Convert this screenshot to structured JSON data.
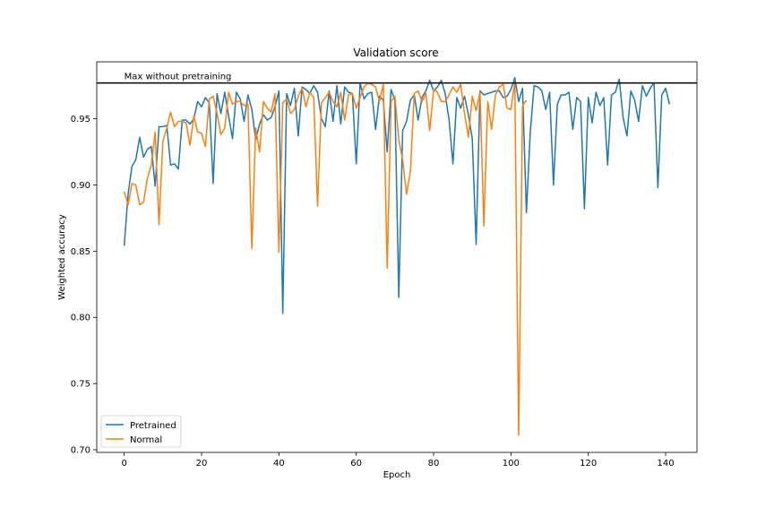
{
  "chart_data": {
    "type": "line",
    "title": "Validation score",
    "xlabel": "Epoch",
    "ylabel": "Weighted accuracy",
    "xlim": [
      -7.1,
      148.1
    ],
    "ylim": [
      0.698,
      0.993
    ],
    "xticks": [
      0,
      20,
      40,
      60,
      80,
      100,
      120,
      140
    ],
    "xtick_labels": [
      "0",
      "20",
      "40",
      "60",
      "80",
      "100",
      "120",
      "140"
    ],
    "yticks": [
      0.7,
      0.75,
      0.8,
      0.85,
      0.9,
      0.95
    ],
    "ytick_labels": [
      "0.70",
      "0.75",
      "0.80",
      "0.85",
      "0.90",
      "0.95"
    ],
    "grid": false,
    "legend_position": "lower-left",
    "reference_line": {
      "y": 0.977,
      "label": "Max without pretraining",
      "color": "#000000"
    },
    "series": [
      {
        "name": "Pretrained",
        "color": "#1f77b4",
        "values": [
          0.854,
          0.893,
          0.914,
          0.919,
          0.936,
          0.921,
          0.927,
          0.929,
          0.899,
          0.944,
          0.944,
          0.945,
          0.915,
          0.916,
          0.912,
          0.949,
          0.949,
          0.946,
          0.95,
          0.963,
          0.959,
          0.966,
          0.962,
          0.901,
          0.969,
          0.954,
          0.97,
          0.952,
          0.935,
          0.97,
          0.965,
          0.948,
          0.968,
          0.957,
          0.934,
          0.946,
          0.953,
          0.949,
          0.951,
          0.959,
          0.971,
          0.803,
          0.969,
          0.96,
          0.973,
          0.937,
          0.974,
          0.972,
          0.969,
          0.975,
          0.97,
          0.95,
          0.944,
          0.971,
          0.948,
          0.975,
          0.946,
          0.974,
          0.97,
          0.969,
          0.916,
          0.977,
          0.965,
          0.969,
          0.97,
          0.942,
          0.967,
          0.964,
          0.925,
          0.972,
          0.964,
          0.815,
          0.941,
          0.948,
          0.964,
          0.968,
          0.949,
          0.966,
          0.971,
          0.979,
          0.971,
          0.974,
          0.979,
          0.969,
          0.949,
          0.916,
          0.966,
          0.958,
          0.967,
          0.953,
          0.935,
          0.855,
          0.971,
          0.968,
          0.969,
          0.97,
          0.971,
          0.971,
          0.966,
          0.967,
          0.972,
          0.981,
          0.963,
          0.973,
          0.879,
          0.94,
          0.975,
          0.974,
          0.971,
          0.957,
          0.97,
          0.9,
          0.961,
          0.968,
          0.968,
          0.97,
          0.942,
          0.966,
          0.963,
          0.882,
          0.966,
          0.947,
          0.97,
          0.96,
          0.966,
          0.915,
          0.968,
          0.97,
          0.98,
          0.951,
          0.937,
          0.971,
          0.964,
          0.948,
          0.975,
          0.967,
          0.973,
          0.977,
          0.898,
          0.968,
          0.973,
          0.961
        ]
      },
      {
        "name": "Normal",
        "color": "#ff7f0e",
        "values": [
          0.895,
          0.885,
          0.901,
          0.9,
          0.885,
          0.887,
          0.905,
          0.915,
          0.94,
          0.87,
          0.933,
          0.943,
          0.955,
          0.944,
          0.948,
          0.948,
          0.947,
          0.93,
          0.952,
          0.94,
          0.939,
          0.929,
          0.965,
          0.967,
          0.954,
          0.938,
          0.943,
          0.97,
          0.961,
          0.963,
          0.963,
          0.96,
          0.961,
          0.852,
          0.943,
          0.925,
          0.963,
          0.958,
          0.955,
          0.969,
          0.849,
          0.962,
          0.965,
          0.954,
          0.957,
          0.967,
          0.973,
          0.959,
          0.97,
          0.966,
          0.884,
          0.962,
          0.966,
          0.97,
          0.963,
          0.959,
          0.97,
          0.949,
          0.968,
          0.969,
          0.958,
          0.966,
          0.974,
          0.977,
          0.976,
          0.974,
          0.963,
          0.976,
          0.837,
          0.963,
          0.967,
          0.934,
          0.919,
          0.893,
          0.91,
          0.969,
          0.971,
          0.963,
          0.969,
          0.941,
          0.972,
          0.97,
          0.963,
          0.963,
          0.968,
          0.974,
          0.97,
          0.976,
          0.954,
          0.936,
          0.967,
          0.956,
          0.97,
          0.869,
          0.963,
          0.942,
          0.968,
          0.974,
          0.976,
          0.958,
          0.957,
          0.978,
          0.711,
          0.96,
          0.964
        ]
      }
    ]
  }
}
